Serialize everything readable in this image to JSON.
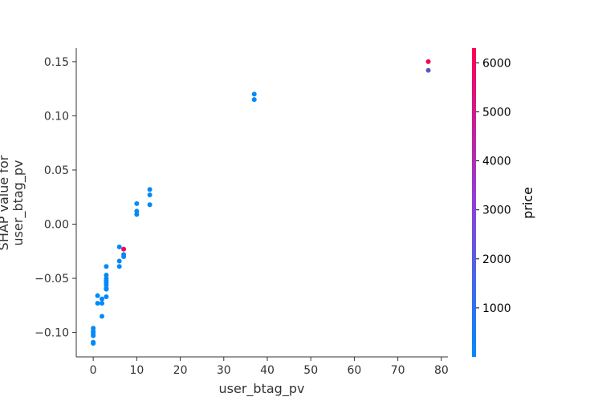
{
  "chart_data": {
    "type": "scatter",
    "title": "",
    "xlabel": "user_btag_pv",
    "ylabel_lines": [
      "SHAP value for",
      "user_btag_pv"
    ],
    "xlim": [
      -3.9,
      81.5
    ],
    "ylim": [
      -0.1225,
      0.1625
    ],
    "xticks": [
      0,
      10,
      20,
      30,
      40,
      50,
      60,
      70,
      80
    ],
    "xtick_labels": [
      "0",
      "10",
      "20",
      "30",
      "40",
      "50",
      "60",
      "70",
      "80"
    ],
    "yticks": [
      -0.1,
      -0.05,
      0.0,
      0.05,
      0.1,
      0.15
    ],
    "ytick_labels": [
      "−0.10",
      "−0.05",
      "0.00",
      "0.05",
      "0.10",
      "0.15"
    ],
    "grid": false,
    "colorbar": {
      "label": "price",
      "min": 0,
      "max": 6300,
      "ticks": [
        1000,
        2000,
        3000,
        4000,
        5000,
        6000
      ],
      "tick_labels": [
        "1000",
        "2000",
        "3000",
        "4000",
        "5000",
        "6000"
      ],
      "color_low": "#008bfb",
      "color_high": "#ff0052"
    },
    "points": [
      {
        "x": 0,
        "y": -0.096,
        "c": 100
      },
      {
        "x": 0,
        "y": -0.099,
        "c": 100
      },
      {
        "x": 0,
        "y": -0.101,
        "c": 100
      },
      {
        "x": 0,
        "y": -0.103,
        "c": 100
      },
      {
        "x": 0,
        "y": -0.109,
        "c": 100
      },
      {
        "x": 0,
        "y": -0.11,
        "c": 100
      },
      {
        "x": 1,
        "y": -0.066,
        "c": 100
      },
      {
        "x": 1,
        "y": -0.073,
        "c": 100
      },
      {
        "x": 2,
        "y": -0.069,
        "c": 100
      },
      {
        "x": 2,
        "y": -0.073,
        "c": 100
      },
      {
        "x": 2,
        "y": -0.085,
        "c": 100
      },
      {
        "x": 3,
        "y": -0.039,
        "c": 100
      },
      {
        "x": 3,
        "y": -0.047,
        "c": 100
      },
      {
        "x": 3,
        "y": -0.05,
        "c": 100
      },
      {
        "x": 3,
        "y": -0.052,
        "c": 100
      },
      {
        "x": 3,
        "y": -0.054,
        "c": 100
      },
      {
        "x": 3,
        "y": -0.056,
        "c": 100
      },
      {
        "x": 3,
        "y": -0.059,
        "c": 100
      },
      {
        "x": 3,
        "y": -0.06,
        "c": 100
      },
      {
        "x": 3,
        "y": -0.067,
        "c": 100
      },
      {
        "x": 6,
        "y": -0.021,
        "c": 100
      },
      {
        "x": 6,
        "y": -0.034,
        "c": 100
      },
      {
        "x": 6,
        "y": -0.039,
        "c": 100
      },
      {
        "x": 7,
        "y": -0.023,
        "c": 6100
      },
      {
        "x": 7,
        "y": -0.028,
        "c": 600
      },
      {
        "x": 7,
        "y": -0.03,
        "c": 100
      },
      {
        "x": 10,
        "y": 0.019,
        "c": 100
      },
      {
        "x": 10,
        "y": 0.012,
        "c": 100
      },
      {
        "x": 10,
        "y": 0.009,
        "c": 100
      },
      {
        "x": 13,
        "y": 0.032,
        "c": 100
      },
      {
        "x": 13,
        "y": 0.027,
        "c": 100
      },
      {
        "x": 13,
        "y": 0.018,
        "c": 100
      },
      {
        "x": 37,
        "y": 0.12,
        "c": 100
      },
      {
        "x": 37,
        "y": 0.115,
        "c": 100
      },
      {
        "x": 77,
        "y": 0.15,
        "c": 6100
      },
      {
        "x": 77,
        "y": 0.142,
        "c": 2200
      }
    ]
  }
}
